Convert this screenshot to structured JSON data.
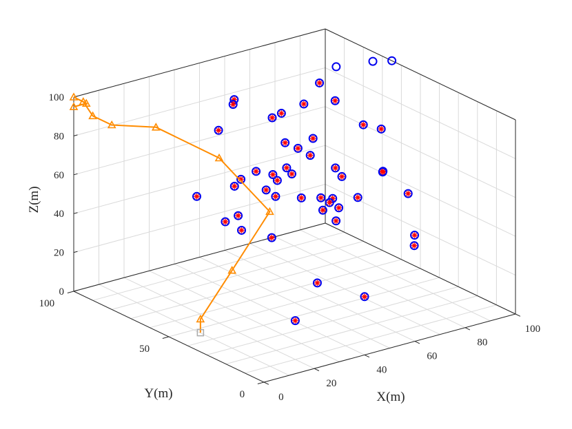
{
  "chart_data": {
    "type": "scatter3d",
    "title": "",
    "xlabel": "X(m)",
    "ylabel": "Y(m)",
    "zlabel": "Z(m)",
    "xlim": [
      0,
      100
    ],
    "ylim": [
      0,
      100
    ],
    "zlim": [
      0,
      100
    ],
    "x_ticks": [
      "0",
      "20",
      "40",
      "60",
      "80",
      "100"
    ],
    "y_ticks": [
      "0",
      "50",
      "100"
    ],
    "z_ticks": [
      "0",
      "20",
      "40",
      "60",
      "80",
      "100"
    ],
    "grid": true,
    "colors": {
      "node_ring": "#0000ee",
      "node_star": "#ff0000",
      "path": "#ff8c00",
      "start_marker": "#aaaaaa"
    },
    "series": [
      {
        "marker": "circle-with-star",
        "points": [
          [
            20,
            10,
            20
          ],
          [
            40,
            0,
            30
          ],
          [
            25,
            5,
            40
          ],
          [
            22,
            25,
            55
          ],
          [
            40,
            15,
            62
          ],
          [
            30,
            20,
            75
          ],
          [
            70,
            55,
            60
          ],
          [
            12,
            20,
            95
          ],
          [
            16,
            20,
            84
          ],
          [
            30,
            25,
            85
          ],
          [
            10,
            25,
            63
          ],
          [
            20,
            40,
            60
          ],
          [
            28,
            30,
            80
          ],
          [
            40,
            35,
            90
          ],
          [
            75,
            20,
            40
          ],
          [
            60,
            55,
            70
          ],
          [
            50,
            30,
            63
          ],
          [
            45,
            25,
            65
          ],
          [
            60,
            30,
            60
          ],
          [
            65,
            45,
            62
          ],
          [
            70,
            30,
            70
          ],
          [
            80,
            30,
            55
          ],
          [
            65,
            55,
            40
          ],
          [
            68,
            60,
            43
          ],
          [
            90,
            40,
            20
          ],
          [
            85,
            50,
            55
          ],
          [
            92,
            60,
            70
          ],
          [
            50,
            60,
            50
          ],
          [
            60,
            40,
            50
          ],
          [
            60,
            75,
            80
          ],
          [
            75,
            70,
            95
          ],
          [
            80,
            80,
            60
          ],
          [
            30,
            60,
            44
          ],
          [
            30,
            35,
            80
          ],
          [
            50,
            55,
            80
          ],
          [
            45,
            75,
            50
          ],
          [
            65,
            65,
            90
          ],
          [
            85,
            75,
            80
          ],
          [
            100,
            80,
            60
          ],
          [
            40,
            65,
            60
          ],
          [
            68,
            78,
            50
          ],
          [
            75,
            90,
            70
          ],
          [
            50,
            90,
            70
          ],
          [
            60,
            95,
            80
          ],
          [
            30,
            75,
            50
          ],
          [
            52,
            85,
            85
          ]
        ]
      },
      {
        "marker": "circle",
        "points": [
          [
            93,
            85,
            90
          ],
          [
            100,
            75,
            95
          ],
          [
            100,
            65,
            100
          ]
        ]
      },
      {
        "marker": "triangle-line",
        "points": [
          [
            5,
            40,
            5
          ],
          [
            5,
            40,
            12
          ],
          [
            10,
            30,
            40
          ],
          [
            25,
            30,
            65
          ],
          [
            20,
            50,
            85
          ],
          [
            10,
            70,
            95
          ],
          [
            0,
            80,
            95
          ],
          [
            0,
            90,
            95
          ],
          [
            0,
            95,
            100
          ],
          [
            0,
            100,
            100
          ],
          [
            5,
            100,
            95
          ],
          [
            0,
            100,
            95
          ]
        ]
      }
    ]
  }
}
